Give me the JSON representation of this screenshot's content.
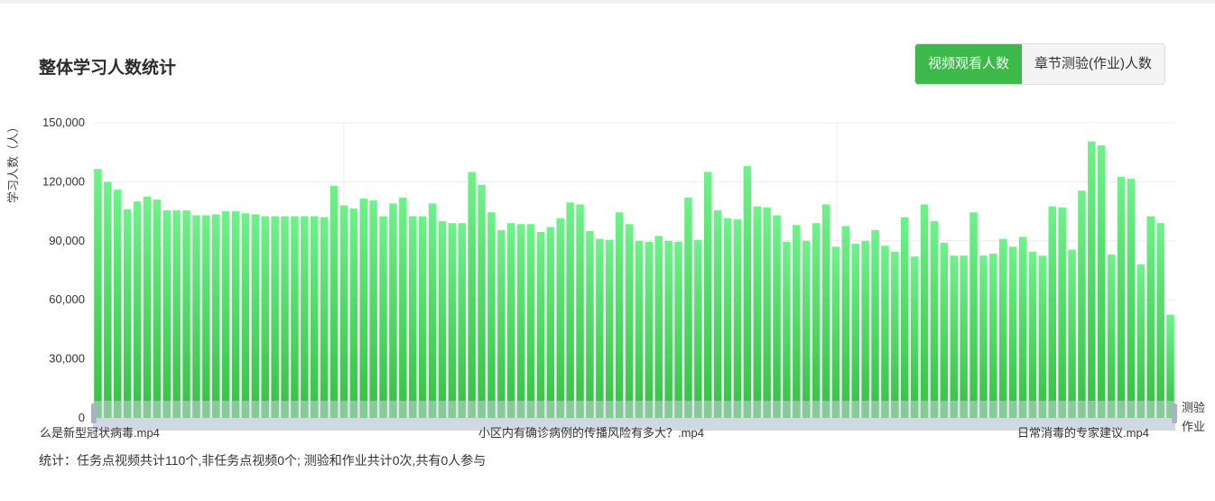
{
  "header": {
    "title": "整体学习人数统计",
    "tabs": [
      {
        "label": "视频观看人数",
        "active": true
      },
      {
        "label": "章节测验(作业)人数",
        "active": false
      }
    ]
  },
  "legend_side": {
    "top": "测验",
    "bottom": "作业"
  },
  "footer": {
    "summary": "统计：任务点视频共计110个,非任务点视频0个; 测验和作业共计0次,共有0人参与"
  },
  "colors": {
    "bar_top": "#6ef28a",
    "bar_bottom": "#35c043",
    "accent": "#3cb94a",
    "slider": "#c9d1dc"
  },
  "chart_data": {
    "type": "bar",
    "title": "",
    "ylabel": "学习人数（人）",
    "ylim": [
      0,
      150000
    ],
    "yticks": [
      "0",
      "30,000",
      "60,000",
      "90,000",
      "120,000",
      "150,000"
    ],
    "ytick_values": [
      0,
      30000,
      60000,
      90000,
      120000,
      150000
    ],
    "visible_category_labels": [
      "么是新型冠状病毒.mp4",
      "小区内有确诊病例的传播风险有多大？.mp4",
      "日常消毒的专家建议.mp4"
    ],
    "grid": true,
    "series": [
      {
        "values": [
          126500,
          120000,
          116000,
          106000,
          110000,
          112500,
          111000,
          105500,
          105500,
          105500,
          103000,
          103000,
          103500,
          105000,
          105000,
          104000,
          103500,
          102500,
          102500,
          102500,
          102500,
          102500,
          102500,
          102000,
          118000,
          108000,
          106500,
          111500,
          110500,
          102500,
          109000,
          112000,
          102500,
          102500,
          109000,
          100000,
          99000,
          99000,
          125000,
          118500,
          104500,
          95500,
          99000,
          98500,
          98500,
          94500,
          97000,
          101500,
          109500,
          108500,
          95000,
          91000,
          90500,
          104500,
          98500,
          90000,
          89500,
          92500,
          90000,
          89500,
          112000,
          90500,
          125000,
          105500,
          101500,
          101000,
          128000,
          107500,
          107000,
          103000,
          89500,
          98000,
          90000,
          99000,
          108500,
          87000,
          97500,
          88500,
          90000,
          95500,
          87500,
          84500,
          102000,
          82000,
          108500,
          100000,
          89000,
          82500,
          82500,
          104500,
          82500,
          83500,
          91000,
          87000,
          92000,
          84500,
          82500,
          107500,
          107000,
          85500,
          115500,
          140500,
          138500,
          83000,
          122500,
          121500,
          78000,
          102500,
          99000,
          52500
        ]
      }
    ]
  }
}
